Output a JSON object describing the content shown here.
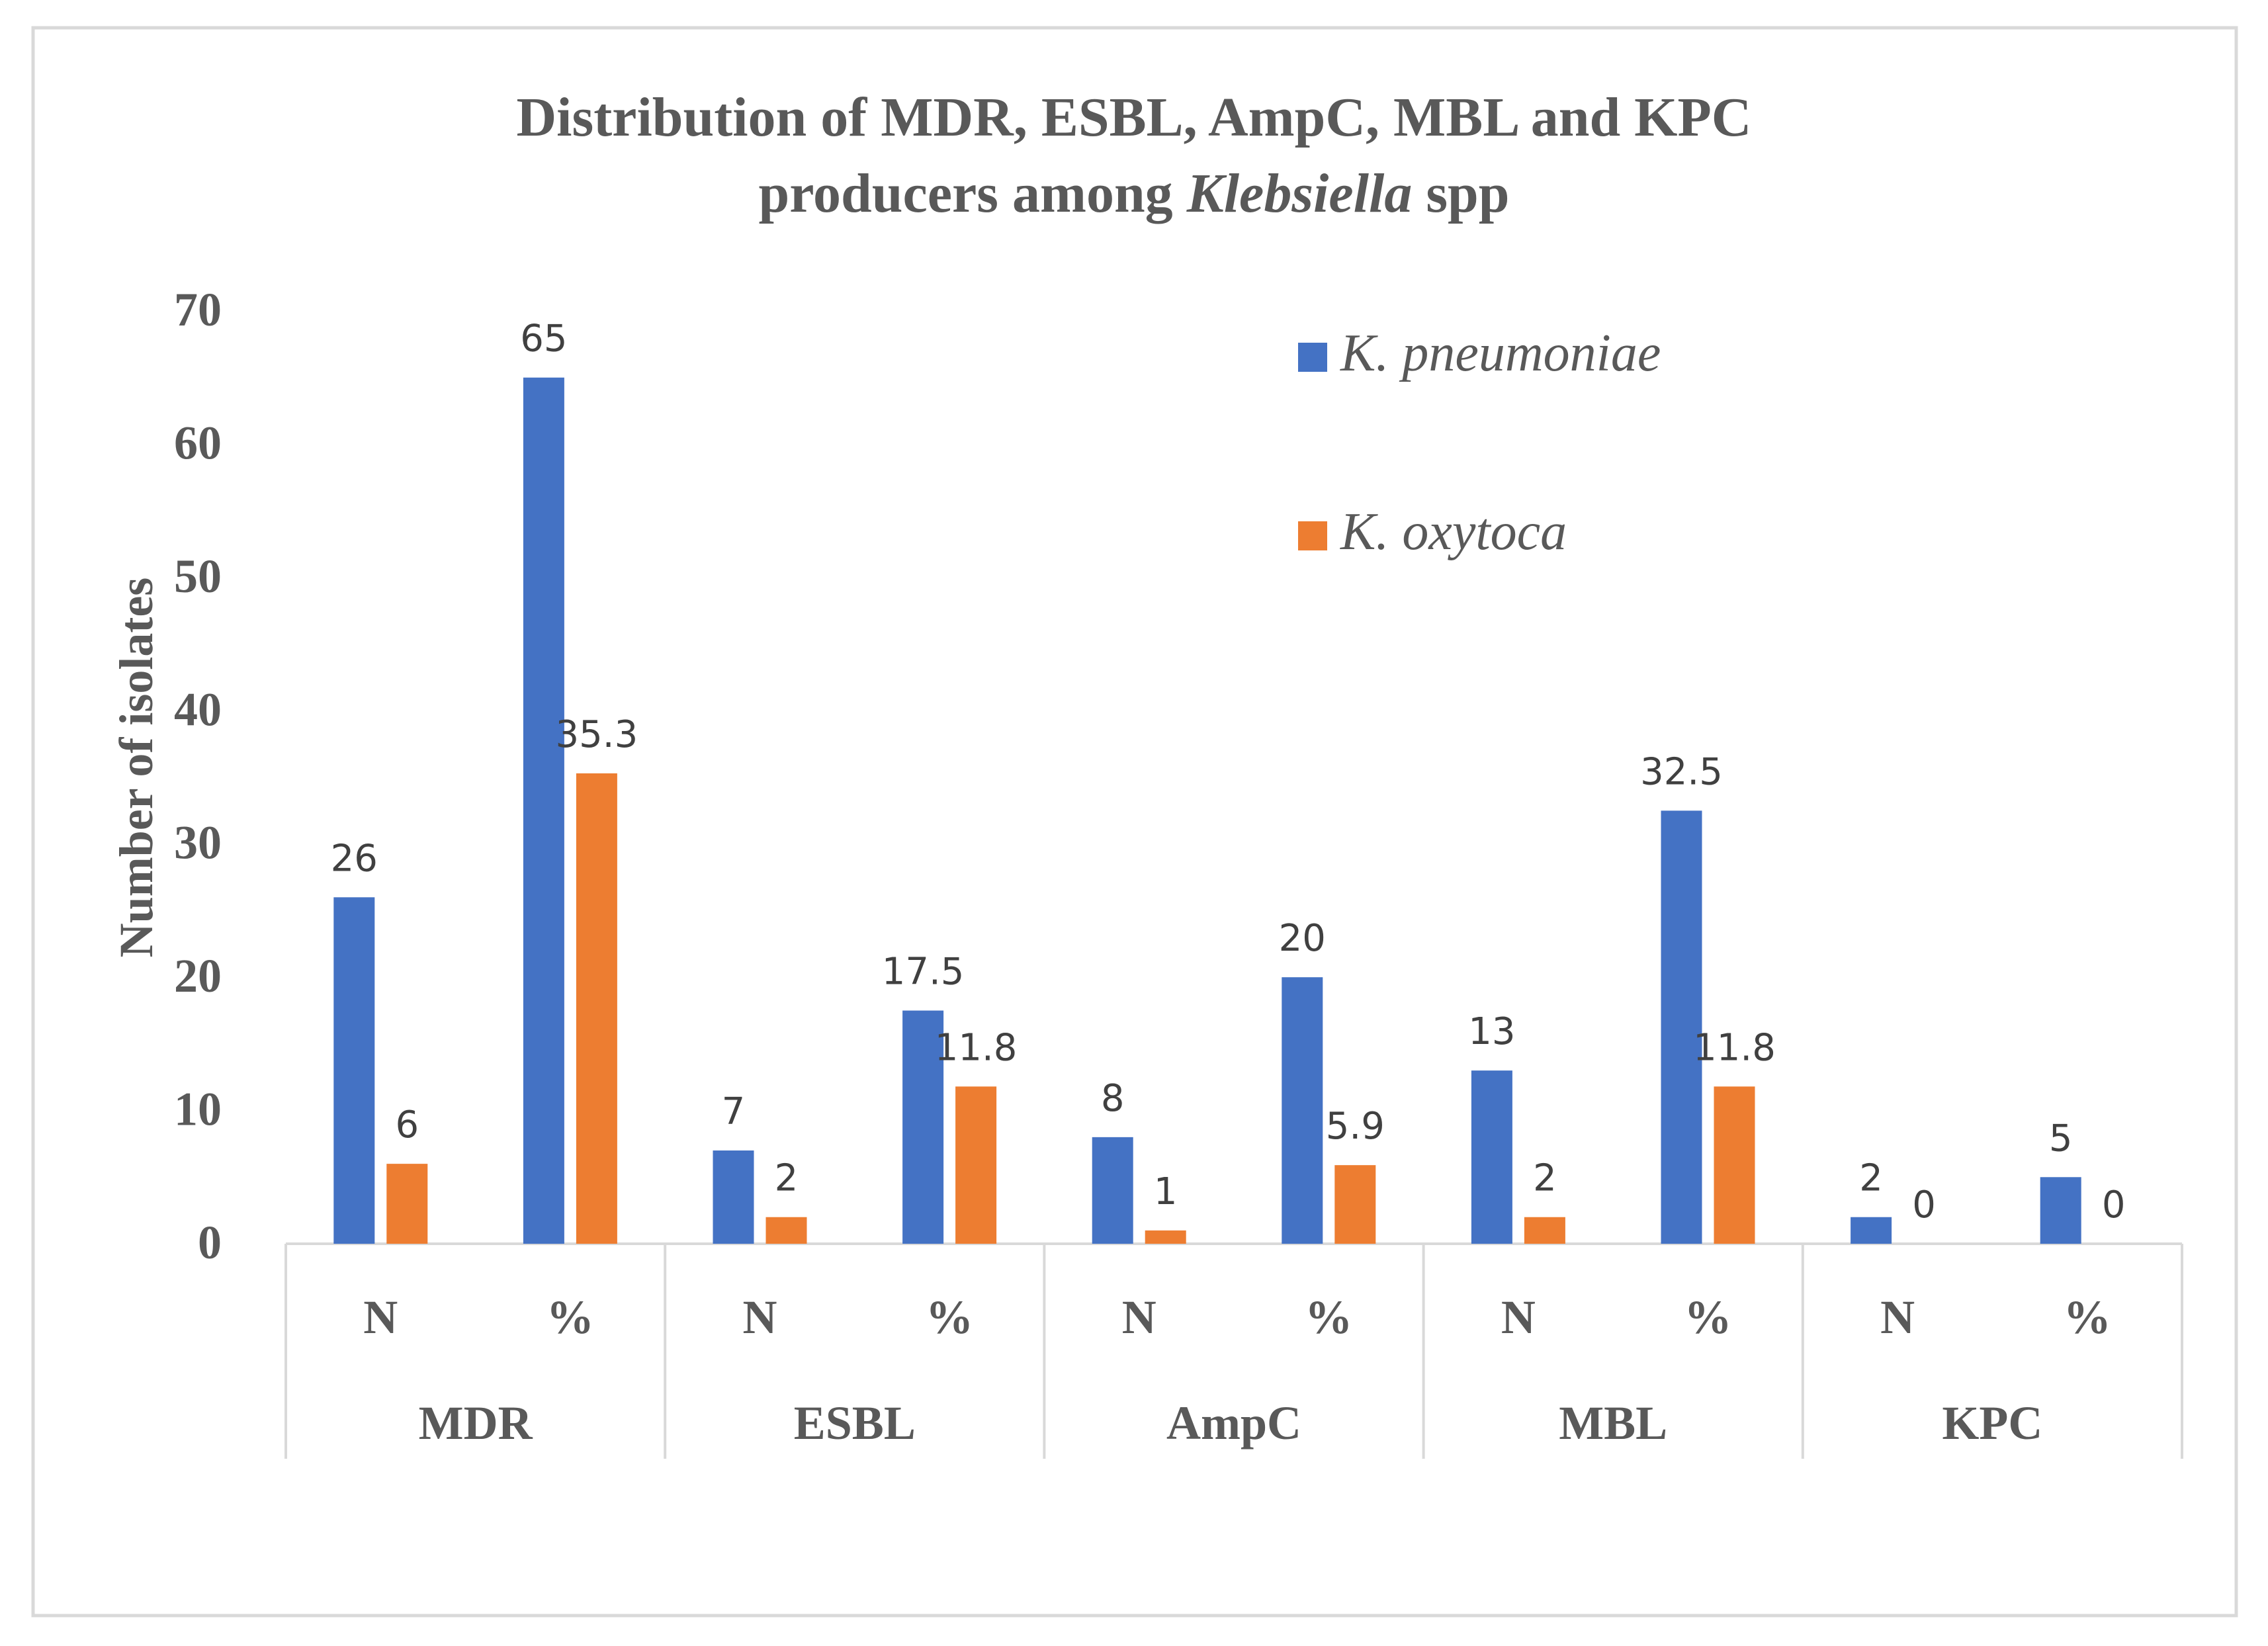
{
  "chart_data": {
    "type": "bar",
    "title_line1": "Distribution of MDR, ESBL, AmpC, MBL and KPC",
    "title_line2_prefix": "producers among ",
    "title_line2_italic": "Klebsiella",
    "title_line2_suffix": " spp",
    "ylabel": "Number  of isolates",
    "ylim": [
      0,
      70
    ],
    "yticks": [
      0,
      10,
      20,
      30,
      40,
      50,
      60,
      70
    ],
    "groups": [
      "MDR",
      "ESBL",
      "AmpC",
      "MBL",
      "KPC"
    ],
    "subcategories": [
      "N",
      "%",
      "N",
      "%",
      "N",
      "%",
      "N",
      "%",
      "N",
      "%"
    ],
    "series": [
      {
        "name": "K. pneumoniae",
        "color": "#4472C4",
        "values": [
          26,
          65,
          7,
          17.5,
          8,
          20,
          13,
          32.5,
          2,
          5
        ]
      },
      {
        "name": "K. oxytoca",
        "color": "#ED7D31",
        "values": [
          6,
          35.3,
          2,
          11.8,
          1,
          5.9,
          2,
          11.8,
          0,
          0
        ]
      }
    ],
    "legend_position": "top-right"
  },
  "colors": {
    "border": "#D9D9D9",
    "axis": "#D9D9D9",
    "text": "#595959"
  }
}
